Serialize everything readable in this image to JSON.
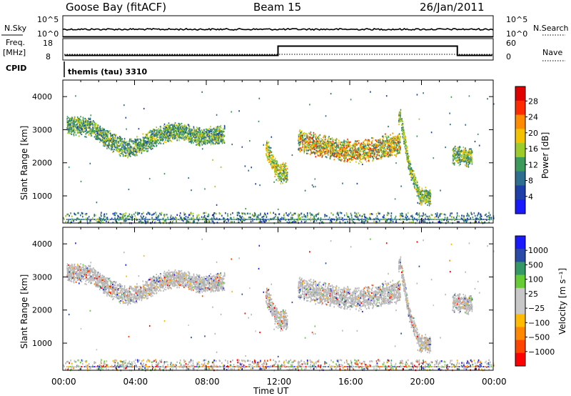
{
  "header": {
    "station": "Goose Bay (fitACF)",
    "beam": "Beam 15",
    "date": "26/Jan/2011"
  },
  "noise_panel": {
    "left_label": "N.Sky",
    "right_label": "N.Search",
    "left_ticks": [
      "10^5",
      "10^0"
    ],
    "right_ticks": [
      "10^5",
      "10^0"
    ]
  },
  "freq_panel": {
    "left_label_line1": "Freq.",
    "left_label_line2": "[MHz]",
    "right_label": "Nave",
    "left_ticks": [
      "18",
      "8"
    ],
    "right_ticks": [
      "60",
      "0"
    ],
    "freq_step": {
      "start_hour": 12.0,
      "end_hour": 22.0,
      "low_mhz": 10.5,
      "high_mhz": 15.5
    }
  },
  "cpid": {
    "label": "CPID",
    "mode": "themis (tau) 3310"
  },
  "x_axis": {
    "label": "Time UT",
    "ticks": [
      "00:00",
      "04:00",
      "08:00",
      "12:00",
      "16:00",
      "20:00",
      "00:00"
    ]
  },
  "power_panel": {
    "ylabel": "Slant Range [km]",
    "yticks": [
      "4000",
      "3000",
      "2000",
      "1000"
    ],
    "cbar_label": "Power [dB]",
    "cbar_ticks": [
      "28",
      "24",
      "20",
      "16",
      "12",
      "8",
      "4"
    ]
  },
  "velocity_panel": {
    "ylabel": "Slant Range [km]",
    "yticks": [
      "4000",
      "3000",
      "2000",
      "1000"
    ],
    "cbar_label": "Velocity [m s⁻¹]",
    "cbar_ticks": [
      "1000",
      "500",
      "100",
      "25",
      "−25",
      "−100",
      "−500",
      "−1000"
    ]
  },
  "colors": {
    "power_scale": [
      "#1a1aff",
      "#1f3fa8",
      "#2e6e8e",
      "#3c9a5a",
      "#9ccc2a",
      "#f2c200",
      "#ff8c00",
      "#ff2a00",
      "#e00000"
    ],
    "velocity_scale": [
      "#ff0000",
      "#ff4400",
      "#ff8800",
      "#ffbb00",
      "#c8c8c8",
      "#c8c8c8",
      "#66cc33",
      "#339966",
      "#2a4aa8",
      "#1a1aff"
    ],
    "ground_scatter": "#b8b8b8"
  },
  "chart_data": [
    {
      "type": "heatmap",
      "title": "Power",
      "xlabel": "Time UT",
      "ylabel": "Slant Range [km]",
      "xlim": [
        0,
        24
      ],
      "ylim": [
        180,
        4500
      ],
      "clim": [
        0,
        30
      ],
      "regions": [
        {
          "t0": 0.2,
          "t1": 9.0,
          "r_center_path": [
            [
              0.5,
              3150
            ],
            [
              1.5,
              3100
            ],
            [
              2.5,
              2700
            ],
            [
              3.5,
              2450
            ],
            [
              4.5,
              2600
            ],
            [
              5.5,
              2900
            ],
            [
              6.5,
              3000
            ],
            [
              7.5,
              2800
            ],
            [
              8.5,
              2850
            ]
          ],
          "width_km": 450,
          "power": [
            6,
            18
          ]
        },
        {
          "t0": 11.3,
          "t1": 12.5,
          "r_center_path": [
            [
              11.4,
              2400
            ],
            [
              11.8,
              1900
            ],
            [
              12.1,
              1700
            ]
          ],
          "width_km": 500,
          "power": [
            8,
            22
          ]
        },
        {
          "t0": 13.1,
          "t1": 18.8,
          "r_center_path": [
            [
              13.1,
              2700
            ],
            [
              14.5,
              2500
            ],
            [
              16.0,
              2350
            ],
            [
              17.5,
              2450
            ],
            [
              18.6,
              2600
            ]
          ],
          "width_km": 550,
          "power": [
            8,
            26
          ]
        },
        {
          "t0": 18.7,
          "t1": 20.5,
          "r_center_path": [
            [
              18.8,
              3400
            ],
            [
              19.3,
              1900
            ],
            [
              19.9,
              1000
            ]
          ],
          "width_km": 400,
          "power": [
            8,
            20
          ]
        },
        {
          "t0": 21.7,
          "t1": 22.8,
          "r_center_path": [
            [
              21.8,
              2250
            ],
            [
              22.6,
              2200
            ]
          ],
          "width_km": 450,
          "power": [
            8,
            20
          ]
        }
      ],
      "near_range_band": {
        "r0": 200,
        "r1": 500
      }
    },
    {
      "type": "heatmap",
      "title": "Velocity",
      "xlabel": "Time UT",
      "ylabel": "Slant Range [km]",
      "xlim": [
        0,
        24
      ],
      "ylim": [
        180,
        4500
      ],
      "clim": [
        -1000,
        1000
      ],
      "dominant": "ground scatter (grey)"
    }
  ]
}
